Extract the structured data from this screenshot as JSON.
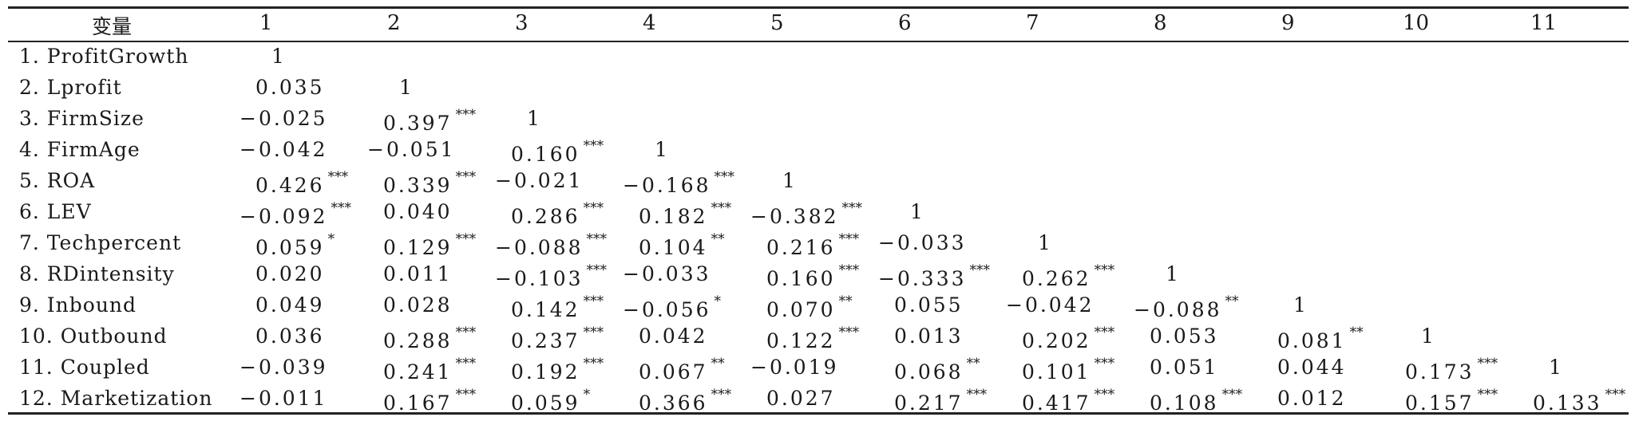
{
  "table": {
    "header_variable": "变量",
    "column_headers": [
      "1",
      "2",
      "3",
      "4",
      "5",
      "6",
      "7",
      "8",
      "9",
      "10",
      "11"
    ],
    "rows": [
      {
        "label": "1. ProfitGrowth",
        "cells": [
          [
            "1",
            ""
          ]
        ]
      },
      {
        "label": "2. Lprofit",
        "cells": [
          [
            "0.035",
            ""
          ],
          [
            "1",
            ""
          ]
        ]
      },
      {
        "label": "3. FirmSize",
        "cells": [
          [
            "−0.025",
            ""
          ],
          [
            "0.397",
            "***"
          ],
          [
            "1",
            ""
          ]
        ]
      },
      {
        "label": "4. FirmAge",
        "cells": [
          [
            "−0.042",
            ""
          ],
          [
            "−0.051",
            ""
          ],
          [
            "0.160",
            "***"
          ],
          [
            "1",
            ""
          ]
        ]
      },
      {
        "label": "5. ROA",
        "cells": [
          [
            "0.426",
            "***"
          ],
          [
            "0.339",
            "***"
          ],
          [
            "−0.021",
            ""
          ],
          [
            "−0.168",
            "***"
          ],
          [
            "1",
            ""
          ]
        ]
      },
      {
        "label": "6. LEV",
        "cells": [
          [
            "−0.092",
            "***"
          ],
          [
            "0.040",
            ""
          ],
          [
            "0.286",
            "***"
          ],
          [
            "0.182",
            "***"
          ],
          [
            "−0.382",
            "***"
          ],
          [
            "1",
            ""
          ]
        ]
      },
      {
        "label": "7. Techpercent",
        "cells": [
          [
            "0.059",
            "*"
          ],
          [
            "0.129",
            "***"
          ],
          [
            "−0.088",
            "***"
          ],
          [
            "0.104",
            "**"
          ],
          [
            "0.216",
            "***"
          ],
          [
            "−0.033",
            ""
          ],
          [
            "1",
            ""
          ]
        ]
      },
      {
        "label": "8. RDintensity",
        "cells": [
          [
            "0.020",
            ""
          ],
          [
            "0.011",
            ""
          ],
          [
            "−0.103",
            "***"
          ],
          [
            "−0.033",
            ""
          ],
          [
            "0.160",
            "***"
          ],
          [
            "−0.333",
            "***"
          ],
          [
            "0.262",
            "***"
          ],
          [
            "1",
            ""
          ]
        ]
      },
      {
        "label": "9. Inbound",
        "cells": [
          [
            "0.049",
            ""
          ],
          [
            "0.028",
            ""
          ],
          [
            "0.142",
            "***"
          ],
          [
            "−0.056",
            "*"
          ],
          [
            "0.070",
            "**"
          ],
          [
            "0.055",
            ""
          ],
          [
            "−0.042",
            ""
          ],
          [
            "−0.088",
            "**"
          ],
          [
            "1",
            ""
          ]
        ]
      },
      {
        "label": "10. Outbound",
        "cells": [
          [
            "0.036",
            ""
          ],
          [
            "0.288",
            "***"
          ],
          [
            "0.237",
            "***"
          ],
          [
            "0.042",
            ""
          ],
          [
            "0.122",
            "***"
          ],
          [
            "0.013",
            ""
          ],
          [
            "0.202",
            "***"
          ],
          [
            "0.053",
            ""
          ],
          [
            "0.081",
            "**"
          ],
          [
            "1",
            ""
          ]
        ]
      },
      {
        "label": "11. Coupled",
        "cells": [
          [
            "−0.039",
            ""
          ],
          [
            "0.241",
            "***"
          ],
          [
            "0.192",
            "***"
          ],
          [
            "0.067",
            "**"
          ],
          [
            "−0.019",
            ""
          ],
          [
            "0.068",
            "**"
          ],
          [
            "0.101",
            "***"
          ],
          [
            "0.051",
            ""
          ],
          [
            "0.044",
            ""
          ],
          [
            "0.173",
            "***"
          ],
          [
            "1",
            ""
          ]
        ]
      },
      {
        "label": "12. Marketization",
        "cells": [
          [
            "−0.011",
            ""
          ],
          [
            "0.167",
            "***"
          ],
          [
            "0.059",
            "*"
          ],
          [
            "0.366",
            "***"
          ],
          [
            "0.027",
            ""
          ],
          [
            "0.217",
            "***"
          ],
          [
            "0.417",
            "***"
          ],
          [
            "0.108",
            "***"
          ],
          [
            "0.012",
            ""
          ],
          [
            "0.157",
            "***"
          ],
          [
            "0.133",
            "***"
          ]
        ]
      }
    ]
  }
}
